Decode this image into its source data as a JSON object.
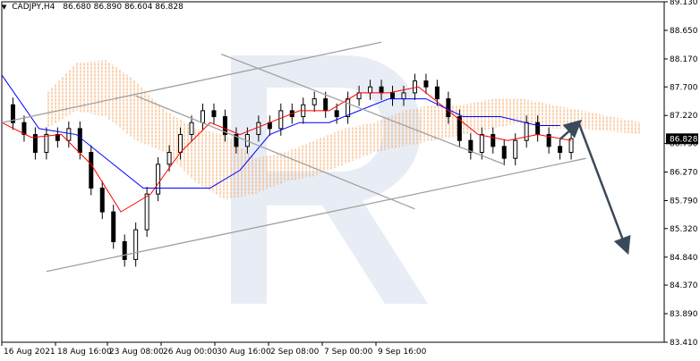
{
  "header": {
    "symbol": "CADJPY,H4",
    "ohlc": "86.680 86.890 86.604 86.828"
  },
  "colors": {
    "bull": "#000000",
    "bear": "#000000",
    "tenkan": "#ff0000",
    "kijun": "#0000ff",
    "cloud_up": "#f4a460",
    "cloud_down": "#c9a9e6",
    "channel": "#a0a0a0",
    "arrow": "#3a4a5a",
    "watermark": "#e8edf5",
    "price_tag_bg": "#000000",
    "price_tag_fg": "#ffffff"
  },
  "chart_data": {
    "type": "line",
    "title": "",
    "series_style": "candlestick with ichimoku cloud",
    "x_labels": [
      "16 Aug 2021",
      "18 Aug 16:00",
      "23 Aug 08:00",
      "26 Aug 00:00",
      "30 Aug 16:00",
      "2 Sep 08:00",
      "7 Sep 00:00",
      "9 Sep 16:00"
    ],
    "y_ticks": [
      "89.130",
      "88.650",
      "88.170",
      "87.700",
      "87.220",
      "86.750",
      "86.270",
      "85.790",
      "85.320",
      "84.840",
      "84.370",
      "83.890",
      "83.410"
    ],
    "ylim": [
      83.41,
      89.13
    ],
    "current_price": "86.828",
    "price_series": {
      "x": [
        0,
        3,
        6,
        9,
        12,
        15,
        18,
        21,
        24,
        27,
        30,
        33,
        36,
        39,
        42,
        45,
        48,
        51,
        54,
        57,
        60,
        63,
        66,
        69,
        72,
        75,
        78,
        81,
        84,
        87,
        90,
        93,
        96,
        99,
        102,
        105,
        108,
        111,
        114,
        117,
        120,
        123,
        126,
        129,
        132,
        135,
        138,
        141,
        144,
        147,
        150,
        153
      ],
      "y": [
        87.4,
        87.1,
        86.9,
        86.6,
        86.9,
        86.8,
        87.0,
        86.6,
        86.0,
        85.6,
        85.1,
        84.8,
        85.3,
        85.9,
        86.4,
        86.6,
        86.9,
        87.1,
        87.3,
        87.2,
        86.9,
        86.7,
        86.9,
        87.1,
        87.0,
        87.3,
        87.2,
        87.4,
        87.5,
        87.3,
        87.2,
        87.5,
        87.6,
        87.7,
        87.6,
        87.5,
        87.6,
        87.8,
        87.7,
        87.5,
        87.2,
        86.8,
        86.6,
        86.9,
        86.7,
        86.5,
        86.8,
        87.1,
        86.9,
        86.7,
        86.6,
        86.83
      ]
    },
    "tenkan": {
      "x": [
        0,
        8,
        16,
        24,
        32,
        40,
        48,
        56,
        64,
        72,
        80,
        88,
        96,
        104,
        112,
        120,
        128,
        136,
        144,
        153
      ],
      "y": [
        87.1,
        86.85,
        86.9,
        86.4,
        85.6,
        85.9,
        86.6,
        87.1,
        86.9,
        87.1,
        87.3,
        87.3,
        87.6,
        87.6,
        87.7,
        87.3,
        86.9,
        86.8,
        86.9,
        86.8
      ]
    },
    "kijun": {
      "x": [
        0,
        10,
        20,
        30,
        38,
        48,
        56,
        64,
        72,
        80,
        88,
        96,
        104,
        114,
        124,
        134,
        144,
        150
      ],
      "y": [
        87.9,
        87.0,
        86.9,
        86.4,
        86.0,
        86.0,
        86.0,
        86.3,
        86.9,
        87.1,
        87.1,
        87.3,
        87.5,
        87.5,
        87.2,
        87.2,
        87.05,
        87.05
      ]
    },
    "cloud": {
      "x": [
        12,
        20,
        28,
        36,
        44,
        52,
        60,
        68,
        76,
        84,
        92,
        100,
        108,
        116,
        124,
        132,
        140,
        148,
        156,
        164,
        172
      ],
      "upper": [
        87.6,
        88.1,
        88.15,
        87.8,
        87.3,
        87.0,
        86.9,
        86.5,
        86.6,
        86.8,
        87.0,
        87.1,
        87.3,
        87.4,
        87.4,
        87.5,
        87.5,
        87.4,
        87.3,
        87.2,
        87.1
      ],
      "lower": [
        87.0,
        87.3,
        87.2,
        86.8,
        86.6,
        86.1,
        85.8,
        85.9,
        86.1,
        86.2,
        86.4,
        86.6,
        86.7,
        86.8,
        86.9,
        87.0,
        87.1,
        87.0,
        87.0,
        86.95,
        86.9
      ]
    },
    "annotations": [
      {
        "name": "channel-upper-line",
        "x1": 0,
        "y1": 87.1,
        "x2": 102,
        "y2": 88.45
      },
      {
        "name": "channel-lower-line",
        "x1": 12,
        "y1": 84.6,
        "x2": 157,
        "y2": 86.5
      },
      {
        "name": "triangle-upper-line",
        "x1": 59,
        "y1": 88.25,
        "x2": 135,
        "y2": 86.4
      },
      {
        "name": "triangle-lower-line",
        "x1": 36,
        "y1": 87.55,
        "x2": 111,
        "y2": 85.65
      }
    ],
    "forecast": [
      {
        "name": "arrow-up",
        "x1": 150,
        "y1": 86.82,
        "x2": 155,
        "y2": 87.1
      },
      {
        "name": "arrow-down",
        "x1": 155,
        "y1": 87.1,
        "x2": 168,
        "y2": 84.95
      }
    ],
    "x_range": [
      0,
      178
    ]
  }
}
